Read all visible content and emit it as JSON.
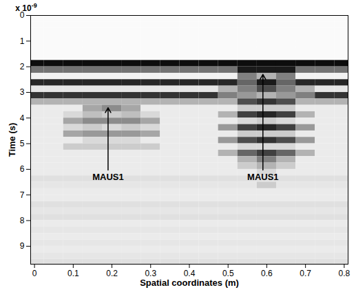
{
  "chart_data": {
    "type": "heatmap",
    "xlabel": "Spatial coordinates (m)",
    "ylabel": "Time (s)",
    "y_multiplier": {
      "base": "x 10",
      "exponent": "-9"
    },
    "xlim": [
      -0.01,
      0.81
    ],
    "ylim": [
      0,
      9.7
    ],
    "xticks": [
      0,
      0.1,
      0.2,
      0.3,
      0.4,
      0.5,
      0.6,
      0.7,
      0.8
    ],
    "yticks": [
      0,
      1,
      2,
      3,
      4,
      5,
      6,
      7,
      8,
      9
    ],
    "value_range": [
      0,
      1
    ],
    "cells": {
      "x": [
        0,
        0.05,
        0.1,
        0.15,
        0.2,
        0.25,
        0.3,
        0.35,
        0.4,
        0.45,
        0.5,
        0.55,
        0.6,
        0.65,
        0.7,
        0.75,
        0.8
      ],
      "y": [
        0.125,
        0.375,
        0.625,
        0.875,
        1.125,
        1.375,
        1.625,
        1.875,
        2.125,
        2.375,
        2.625,
        2.875,
        3.125,
        3.375,
        3.625,
        3.875,
        4.125,
        4.375,
        4.625,
        4.875,
        5.125,
        5.375,
        5.625,
        5.875,
        6.125,
        6.375,
        6.625,
        6.875,
        7.125,
        7.375,
        7.625,
        7.875,
        8.125,
        8.375,
        8.625,
        8.875,
        9.125,
        9.375,
        9.625
      ],
      "values": [
        [
          0.02,
          0.02,
          0.02,
          0.02,
          0.02,
          0.02,
          0.02,
          0.02,
          0.02,
          0.02,
          0.02,
          0.02,
          0.02,
          0.02,
          0.02,
          0.02,
          0.02
        ],
        [
          0.02,
          0.02,
          0.02,
          0.02,
          0.02,
          0.02,
          0.02,
          0.02,
          0.02,
          0.02,
          0.02,
          0.02,
          0.02,
          0.02,
          0.02,
          0.02,
          0.02
        ],
        [
          0.02,
          0.02,
          0.02,
          0.02,
          0.02,
          0.02,
          0.02,
          0.02,
          0.02,
          0.02,
          0.02,
          0.02,
          0.02,
          0.02,
          0.02,
          0.02,
          0.02
        ],
        [
          0.02,
          0.02,
          0.02,
          0.02,
          0.02,
          0.02,
          0.02,
          0.02,
          0.02,
          0.02,
          0.02,
          0.02,
          0.02,
          0.02,
          0.02,
          0.02,
          0.02
        ],
        [
          0.02,
          0.02,
          0.02,
          0.02,
          0.02,
          0.02,
          0.02,
          0.02,
          0.02,
          0.02,
          0.02,
          0.02,
          0.02,
          0.02,
          0.02,
          0.02,
          0.02
        ],
        [
          0.02,
          0.02,
          0.02,
          0.02,
          0.02,
          0.02,
          0.02,
          0.02,
          0.02,
          0.02,
          0.02,
          0.02,
          0.02,
          0.02,
          0.02,
          0.02,
          0.02
        ],
        [
          0.02,
          0.02,
          0.02,
          0.02,
          0.02,
          0.02,
          0.02,
          0.02,
          0.02,
          0.02,
          0.02,
          0.02,
          0.02,
          0.02,
          0.02,
          0.02,
          0.02
        ],
        [
          0.95,
          0.95,
          0.95,
          0.95,
          0.95,
          0.95,
          0.95,
          0.95,
          0.95,
          0.95,
          0.95,
          0.95,
          0.95,
          0.95,
          0.95,
          0.95,
          0.95
        ],
        [
          0.55,
          0.55,
          0.55,
          0.55,
          0.55,
          0.55,
          0.55,
          0.55,
          0.55,
          0.55,
          0.55,
          0.9,
          0.9,
          0.9,
          0.55,
          0.55,
          0.55
        ],
        [
          0.05,
          0.05,
          0.05,
          0.05,
          0.05,
          0.05,
          0.05,
          0.05,
          0.05,
          0.05,
          0.05,
          0.5,
          0.3,
          0.5,
          0.05,
          0.05,
          0.05
        ],
        [
          0.85,
          0.85,
          0.85,
          0.85,
          0.85,
          0.85,
          0.85,
          0.85,
          0.85,
          0.85,
          0.85,
          0.6,
          0.9,
          0.6,
          0.85,
          0.85,
          0.85
        ],
        [
          0.1,
          0.1,
          0.1,
          0.1,
          0.1,
          0.1,
          0.1,
          0.1,
          0.1,
          0.1,
          0.3,
          0.5,
          0.7,
          0.5,
          0.3,
          0.1,
          0.1
        ],
        [
          0.8,
          0.8,
          0.8,
          0.8,
          0.8,
          0.8,
          0.8,
          0.8,
          0.8,
          0.8,
          0.5,
          0.4,
          0.3,
          0.4,
          0.5,
          0.8,
          0.8
        ],
        [
          0.3,
          0.3,
          0.3,
          0.3,
          0.3,
          0.3,
          0.3,
          0.3,
          0.3,
          0.3,
          0.3,
          0.7,
          0.8,
          0.7,
          0.3,
          0.3,
          0.3
        ],
        [
          0.08,
          0.08,
          0.08,
          0.35,
          0.45,
          0.35,
          0.08,
          0.08,
          0.08,
          0.08,
          0.08,
          0.2,
          0.2,
          0.2,
          0.08,
          0.08,
          0.08
        ],
        [
          0.08,
          0.08,
          0.15,
          0.25,
          0.2,
          0.25,
          0.15,
          0.08,
          0.08,
          0.08,
          0.3,
          0.75,
          0.85,
          0.75,
          0.3,
          0.08,
          0.08
        ],
        [
          0.08,
          0.08,
          0.35,
          0.45,
          0.45,
          0.45,
          0.35,
          0.08,
          0.08,
          0.08,
          0.08,
          0.15,
          0.2,
          0.15,
          0.08,
          0.08,
          0.08
        ],
        [
          0.08,
          0.08,
          0.15,
          0.2,
          0.15,
          0.2,
          0.15,
          0.08,
          0.08,
          0.08,
          0.4,
          0.75,
          0.85,
          0.75,
          0.4,
          0.08,
          0.08
        ],
        [
          0.08,
          0.08,
          0.35,
          0.4,
          0.4,
          0.4,
          0.35,
          0.08,
          0.08,
          0.08,
          0.08,
          0.2,
          0.2,
          0.2,
          0.08,
          0.08,
          0.08
        ],
        [
          0.08,
          0.08,
          0.08,
          0.15,
          0.15,
          0.15,
          0.08,
          0.08,
          0.08,
          0.08,
          0.4,
          0.7,
          0.8,
          0.7,
          0.4,
          0.08,
          0.08
        ],
        [
          0.08,
          0.08,
          0.2,
          0.2,
          0.2,
          0.2,
          0.2,
          0.08,
          0.08,
          0.08,
          0.08,
          0.15,
          0.15,
          0.15,
          0.08,
          0.08,
          0.08
        ],
        [
          0.08,
          0.08,
          0.08,
          0.08,
          0.08,
          0.08,
          0.08,
          0.08,
          0.08,
          0.08,
          0.3,
          0.6,
          0.75,
          0.6,
          0.3,
          0.08,
          0.08
        ],
        [
          0.08,
          0.08,
          0.08,
          0.08,
          0.08,
          0.08,
          0.08,
          0.08,
          0.08,
          0.08,
          0.08,
          0.3,
          0.5,
          0.3,
          0.08,
          0.08,
          0.08
        ],
        [
          0.08,
          0.08,
          0.08,
          0.08,
          0.08,
          0.08,
          0.08,
          0.08,
          0.08,
          0.08,
          0.08,
          0.2,
          0.3,
          0.2,
          0.08,
          0.08,
          0.08
        ],
        [
          0.08,
          0.08,
          0.08,
          0.08,
          0.08,
          0.08,
          0.08,
          0.08,
          0.08,
          0.08,
          0.08,
          0.08,
          0.15,
          0.08,
          0.08,
          0.08,
          0.08
        ],
        [
          0.12,
          0.12,
          0.12,
          0.12,
          0.12,
          0.12,
          0.12,
          0.12,
          0.12,
          0.12,
          0.12,
          0.12,
          0.12,
          0.12,
          0.12,
          0.12,
          0.12
        ],
        [
          0.1,
          0.1,
          0.1,
          0.1,
          0.1,
          0.1,
          0.1,
          0.1,
          0.1,
          0.1,
          0.1,
          0.1,
          0.2,
          0.1,
          0.1,
          0.1,
          0.1
        ],
        [
          0.08,
          0.08,
          0.08,
          0.08,
          0.08,
          0.08,
          0.08,
          0.08,
          0.08,
          0.08,
          0.08,
          0.08,
          0.08,
          0.08,
          0.08,
          0.08,
          0.08
        ],
        [
          0.08,
          0.08,
          0.08,
          0.08,
          0.08,
          0.08,
          0.08,
          0.08,
          0.08,
          0.08,
          0.08,
          0.08,
          0.08,
          0.08,
          0.08,
          0.08,
          0.08
        ],
        [
          0.12,
          0.12,
          0.12,
          0.12,
          0.12,
          0.12,
          0.12,
          0.12,
          0.12,
          0.12,
          0.12,
          0.12,
          0.12,
          0.12,
          0.12,
          0.12,
          0.12
        ],
        [
          0.1,
          0.1,
          0.1,
          0.1,
          0.1,
          0.1,
          0.1,
          0.1,
          0.1,
          0.1,
          0.1,
          0.1,
          0.1,
          0.1,
          0.1,
          0.1,
          0.1
        ],
        [
          0.12,
          0.12,
          0.12,
          0.12,
          0.12,
          0.12,
          0.12,
          0.12,
          0.12,
          0.12,
          0.12,
          0.12,
          0.12,
          0.12,
          0.12,
          0.12,
          0.12
        ],
        [
          0.08,
          0.08,
          0.08,
          0.08,
          0.08,
          0.08,
          0.08,
          0.08,
          0.08,
          0.08,
          0.08,
          0.08,
          0.08,
          0.08,
          0.08,
          0.08,
          0.08
        ],
        [
          0.1,
          0.1,
          0.1,
          0.1,
          0.1,
          0.1,
          0.1,
          0.1,
          0.1,
          0.1,
          0.1,
          0.1,
          0.1,
          0.1,
          0.1,
          0.1,
          0.1
        ],
        [
          0.08,
          0.08,
          0.08,
          0.08,
          0.08,
          0.08,
          0.08,
          0.08,
          0.08,
          0.08,
          0.08,
          0.08,
          0.08,
          0.08,
          0.08,
          0.08,
          0.08
        ],
        [
          0.1,
          0.1,
          0.1,
          0.1,
          0.1,
          0.1,
          0.1,
          0.1,
          0.1,
          0.1,
          0.1,
          0.1,
          0.1,
          0.1,
          0.1,
          0.1,
          0.1
        ],
        [
          0.08,
          0.08,
          0.08,
          0.08,
          0.08,
          0.08,
          0.08,
          0.08,
          0.08,
          0.08,
          0.08,
          0.08,
          0.08,
          0.08,
          0.08,
          0.08,
          0.08
        ],
        [
          0.1,
          0.1,
          0.1,
          0.1,
          0.1,
          0.1,
          0.1,
          0.1,
          0.1,
          0.1,
          0.1,
          0.1,
          0.1,
          0.1,
          0.1,
          0.1,
          0.1
        ],
        [
          0.12,
          0.12,
          0.12,
          0.12,
          0.12,
          0.12,
          0.12,
          0.12,
          0.12,
          0.12,
          0.12,
          0.12,
          0.12,
          0.12,
          0.12,
          0.12,
          0.12
        ]
      ]
    },
    "annotations": [
      {
        "text": "MAUS1",
        "x": 0.19,
        "y": 3.6,
        "y_text": 6.3
      },
      {
        "text": "MAUS1",
        "x": 0.59,
        "y": 2.3,
        "y_text": 6.3
      }
    ]
  }
}
